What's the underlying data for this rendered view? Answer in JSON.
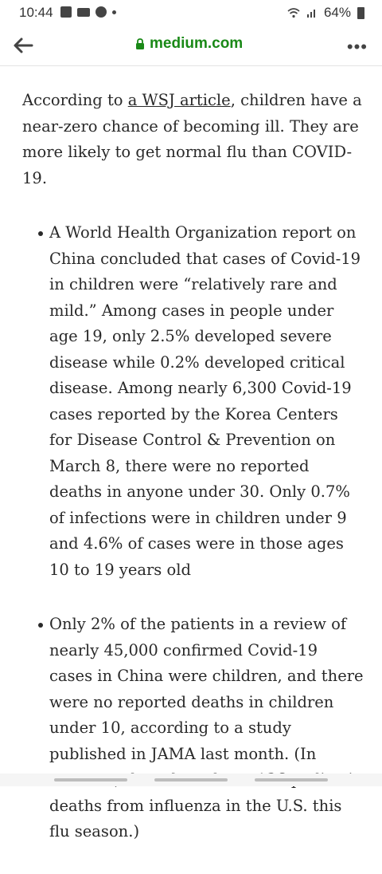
{
  "status_bar": {
    "time": "10:44",
    "battery": "64%",
    "icons_left": [
      "image-icon",
      "video-icon",
      "messenger-icon",
      "dot-icon"
    ],
    "icons_right": [
      "wifi-icon",
      "signal-icon",
      "battery-icon"
    ]
  },
  "browser": {
    "url": "medium.com",
    "url_color": "#1a8917",
    "menu": "•••"
  },
  "article": {
    "intro_before": "According to ",
    "intro_link": "a WSJ article",
    "intro_after": ", children have a near-zero chance of becoming ill. They are more likely to get normal flu than COVID-19.",
    "bullets": [
      "A World Health Organization report on China concluded that cases of Covid-19 in children were “relatively rare and mild.” Among cases in people under age 19, only 2.5% developed severe disease while 0.2% developed critical disease. Among nearly 6,300 Covid-19 cases reported by the Korea Centers for Disease Control & Prevention on March 8, there were no reported deaths in anyone under 30. Only 0.7% of infections were in children under 9 and 4.6% of cases were in those ages 10 to 19 years old",
      "Only 2% of the patients in a review of nearly 45,000 confirmed Covid-19 cases in China were children, and there were no reported deaths in children under 10, according to a study published in JAMA last month. (In contrast, there have been 136 pediatric deaths from influenza in the U.S. this flu season.)"
    ]
  }
}
